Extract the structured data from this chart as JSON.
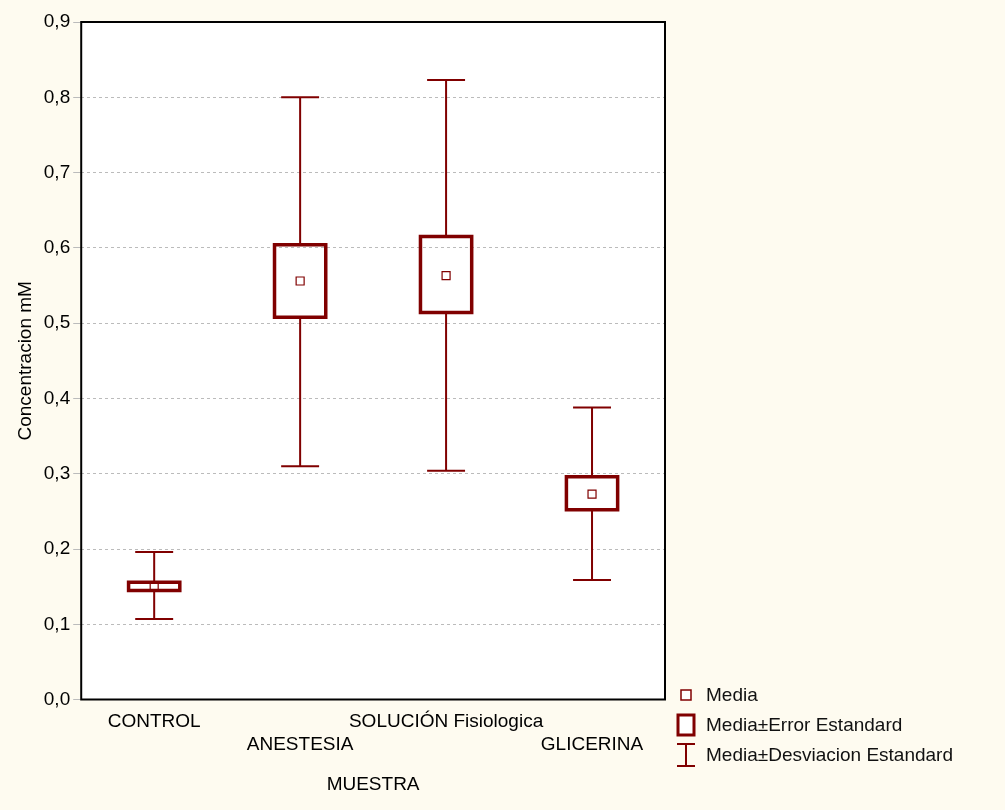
{
  "chart_data": {
    "type": "box",
    "xlabel": "MUESTRA",
    "ylabel": "Concentracion mM",
    "categories": [
      "CONTROL",
      "ANESTESIA",
      "SOLUCIÓN Fisiologica",
      "GLICERINA"
    ],
    "boxes": [
      {
        "low": 0.107,
        "q1": 0.145,
        "median": 0.151,
        "q3": 0.156,
        "high": 0.196
      },
      {
        "low": 0.31,
        "q1": 0.508,
        "median": 0.556,
        "q3": 0.604,
        "high": 0.8
      },
      {
        "low": 0.304,
        "q1": 0.514,
        "median": 0.563,
        "q3": 0.615,
        "high": 0.823
      },
      {
        "low": 0.159,
        "q1": 0.252,
        "median": 0.273,
        "q3": 0.296,
        "high": 0.388
      }
    ],
    "color": "#800000",
    "ylim": [
      0,
      0.9
    ],
    "yticks": [
      {
        "value": 0,
        "label": "0,0"
      },
      {
        "value": 0.1,
        "label": "0,1"
      },
      {
        "value": 0.2,
        "label": "0,2"
      },
      {
        "value": 0.3,
        "label": "0,3"
      },
      {
        "value": 0.4,
        "label": "0,4"
      },
      {
        "value": 0.5,
        "label": "0,5"
      },
      {
        "value": 0.6,
        "label": "0,6"
      },
      {
        "value": 0.7,
        "label": "0,7"
      },
      {
        "value": 0.8,
        "label": "0,8"
      },
      {
        "value": 0.9,
        "label": "0,9"
      }
    ],
    "grid": "y",
    "annotations": [
      "Media",
      "Media±Error Estandard",
      "Media±Desviacion Estandard"
    ]
  }
}
